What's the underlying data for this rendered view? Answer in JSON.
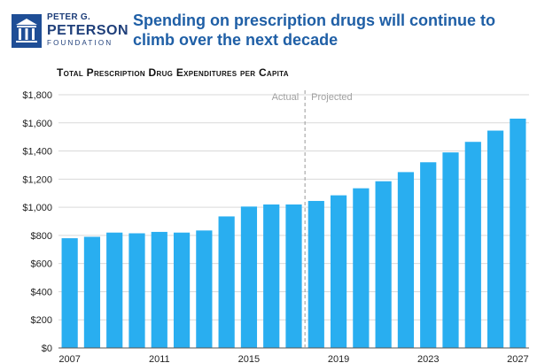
{
  "header": {
    "logo_line1": "PETER G.",
    "logo_line2": "PETERSON",
    "logo_line3": "FOUNDATION",
    "headline": "Spending on prescription drugs will continue to climb over the next decade"
  },
  "colors": {
    "bar": "#29aef0",
    "brand": "#1f4e96",
    "headline": "#1f5fa6"
  },
  "chart_data": {
    "type": "bar",
    "title": "Total Prescription Drug Expenditures per Capita",
    "xlabel": "",
    "ylabel": "",
    "categories": [
      "2007",
      "2008",
      "2009",
      "2010",
      "2011",
      "2012",
      "2013",
      "2014",
      "2015",
      "2016",
      "2017",
      "2018",
      "2019",
      "2020",
      "2021",
      "2022",
      "2023",
      "2024",
      "2025",
      "2026",
      "2027"
    ],
    "values": [
      780,
      790,
      820,
      815,
      825,
      820,
      835,
      935,
      1005,
      1020,
      1020,
      1045,
      1085,
      1135,
      1185,
      1250,
      1320,
      1390,
      1465,
      1545,
      1630
    ],
    "ylim": [
      0,
      1800
    ],
    "yticks": [
      0,
      200,
      400,
      600,
      800,
      1000,
      1200,
      1400,
      1600,
      1800
    ],
    "ytick_labels": [
      "$0",
      "$200",
      "$400",
      "$600",
      "$800",
      "$1,000",
      "$1,200",
      "$1,400",
      "$1,600",
      "$1,800"
    ],
    "xtick_labels": [
      "2007",
      "2011",
      "2015",
      "2019",
      "2023",
      "2027"
    ],
    "gridlines": true,
    "annotations": {
      "actual": "Actual",
      "projected": "Projected",
      "divider_after": "2017"
    }
  }
}
